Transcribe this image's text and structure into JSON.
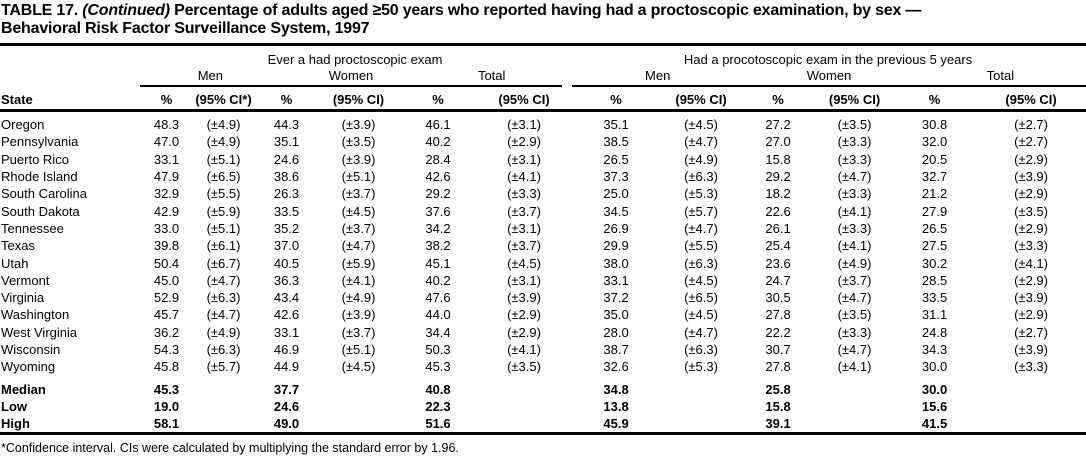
{
  "title": {
    "prefix": "TABLE 17.",
    "continued": "(Continued)",
    "line1": "Percentage of adults aged ≥50 years who reported having had a proctoscopic examination, by sex —",
    "line2": "Behavioral Risk Factor Surveillance System, 1997"
  },
  "groups": [
    "Ever a had proctoscopic exam",
    "Had a procotoscopic exam in the previous 5 years"
  ],
  "subgroups": [
    "Men",
    "Women",
    "Total"
  ],
  "columns": {
    "state": "State",
    "pct": "%",
    "ci_first": "(95% CI*)",
    "ci": "(95% CI)"
  },
  "rows": [
    [
      "Oregon",
      "48.3",
      "(±4.9)",
      "44.3",
      "(±3.9)",
      "46.1",
      "(±3.1)",
      "35.1",
      "(±4.5)",
      "27.2",
      "(±3.5)",
      "30.8",
      "(±2.7)"
    ],
    [
      "Pennsylvania",
      "47.0",
      "(±4.9)",
      "35.1",
      "(±3.5)",
      "40.2",
      "(±2.9)",
      "38.5",
      "(±4.7)",
      "27.0",
      "(±3.3)",
      "32.0",
      "(±2.7)"
    ],
    [
      "Puerto Rico",
      "33.1",
      "(±5.1)",
      "24.6",
      "(±3.9)",
      "28.4",
      "(±3.1)",
      "26.5",
      "(±4.9)",
      "15.8",
      "(±3.3)",
      "20.5",
      "(±2.9)"
    ],
    [
      "Rhode Island",
      "47.9",
      "(±6.5)",
      "38.6",
      "(±5.1)",
      "42.6",
      "(±4.1)",
      "37.3",
      "(±6.3)",
      "29.2",
      "(±4.7)",
      "32.7",
      "(±3.9)"
    ],
    [
      "South Carolina",
      "32.9",
      "(±5.5)",
      "26.3",
      "(±3.7)",
      "29.2",
      "(±3.3)",
      "25.0",
      "(±5.3)",
      "18.2",
      "(±3.3)",
      "21.2",
      "(±2.9)"
    ],
    [
      "South Dakota",
      "42.9",
      "(±5.9)",
      "33.5",
      "(±4.5)",
      "37.6",
      "(±3.7)",
      "34.5",
      "(±5.7)",
      "22.6",
      "(±4.1)",
      "27.9",
      "(±3.5)"
    ],
    [
      "Tennessee",
      "33.0",
      "(±5.1)",
      "35.2",
      "(±3.7)",
      "34.2",
      "(±3.1)",
      "26.9",
      "(±4.7)",
      "26.1",
      "(±3.3)",
      "26.5",
      "(±2.9)"
    ],
    [
      "Texas",
      "39.8",
      "(±6.1)",
      "37.0",
      "(±4.7)",
      "38.2",
      "(±3.7)",
      "29.9",
      "(±5.5)",
      "25.4",
      "(±4.1)",
      "27.5",
      "(±3.3)"
    ],
    [
      "Utah",
      "50.4",
      "(±6.7)",
      "40.5",
      "(±5.9)",
      "45.1",
      "(±4.5)",
      "38.0",
      "(±6.3)",
      "23.6",
      "(±4.9)",
      "30.2",
      "(±4.1)"
    ],
    [
      "Vermont",
      "45.0",
      "(±4.7)",
      "36.3",
      "(±4.1)",
      "40.2",
      "(±3.1)",
      "33.1",
      "(±4.5)",
      "24.7",
      "(±3.7)",
      "28.5",
      "(±2.9)"
    ],
    [
      "Virginia",
      "52.9",
      "(±6.3)",
      "43.4",
      "(±4.9)",
      "47.6",
      "(±3.9)",
      "37.2",
      "(±6.5)",
      "30.5",
      "(±4.7)",
      "33.5",
      "(±3.9)"
    ],
    [
      "Washington",
      "45.7",
      "(±4.7)",
      "42.6",
      "(±3.9)",
      "44.0",
      "(±2.9)",
      "35.0",
      "(±4.5)",
      "27.8",
      "(±3.5)",
      "31.1",
      "(±2.9)"
    ],
    [
      "West Virginia",
      "36.2",
      "(±4.9)",
      "33.1",
      "(±3.7)",
      "34.4",
      "(±2.9)",
      "28.0",
      "(±4.7)",
      "22.2",
      "(±3.3)",
      "24.8",
      "(±2.7)"
    ],
    [
      "Wisconsin",
      "54.3",
      "(±6.3)",
      "46.9",
      "(±5.1)",
      "50.3",
      "(±4.1)",
      "38.7",
      "(±6.3)",
      "30.7",
      "(±4.7)",
      "34.3",
      "(±3.9)"
    ],
    [
      "Wyoming",
      "45.8",
      "(±5.7)",
      "44.9",
      "(±4.5)",
      "45.3",
      "(±3.5)",
      "32.6",
      "(±5.3)",
      "27.8",
      "(±4.1)",
      "30.0",
      "(±3.3)"
    ]
  ],
  "summary": [
    [
      "Median",
      "45.3",
      "",
      "37.7",
      "",
      "40.8",
      "",
      "34.8",
      "",
      "25.8",
      "",
      "30.0",
      ""
    ],
    [
      "Low",
      "19.0",
      "",
      "24.6",
      "",
      "22.3",
      "",
      "13.8",
      "",
      "15.8",
      "",
      "15.6",
      ""
    ],
    [
      "High",
      "58.1",
      "",
      "49.0",
      "",
      "51.6",
      "",
      "45.9",
      "",
      "39.1",
      "",
      "41.5",
      ""
    ]
  ],
  "footnote": "*Confidence interval. CIs were calculated by multiplying the standard error by 1.96."
}
